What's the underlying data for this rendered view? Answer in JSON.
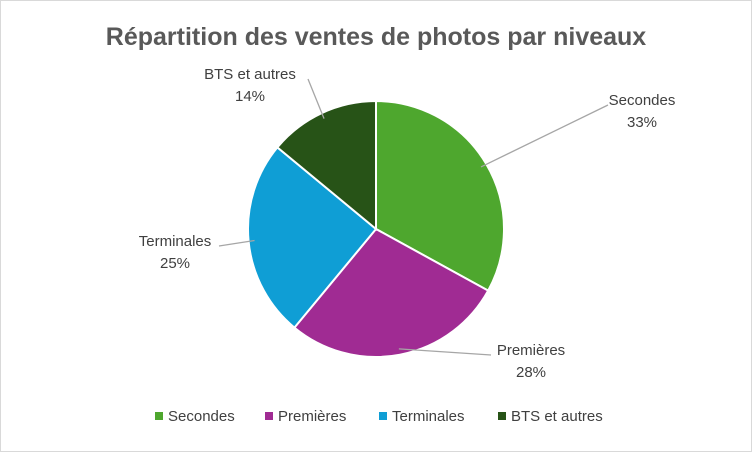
{
  "chart_data": {
    "type": "pie",
    "title": "Répartition des ventes de photos par niveaux",
    "categories": [
      "Secondes",
      "Premières",
      "Terminales",
      "BTS et autres"
    ],
    "values": [
      33,
      28,
      25,
      14
    ],
    "value_labels": [
      "33%",
      "28%",
      "25%",
      "14%"
    ],
    "colors": [
      "#4EA72E",
      "#A02B93",
      "#0F9ED5",
      "#275317"
    ],
    "legend_position": "bottom",
    "start_angle": "top",
    "direction": "clockwise"
  }
}
